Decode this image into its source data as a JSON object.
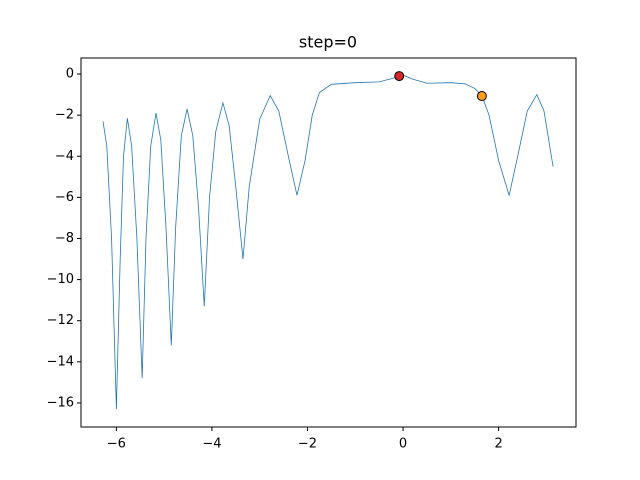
{
  "chart_data": {
    "type": "line",
    "title": "step=0",
    "xlim": [
      -6.74,
      3.62
    ],
    "ylim": [
      -17.17,
      0.78
    ],
    "xticks": [
      {
        "value": -6,
        "label": "−6"
      },
      {
        "value": -4,
        "label": "−4"
      },
      {
        "value": -2,
        "label": "−2"
      },
      0,
      2
    ],
    "yticks": [
      0,
      {
        "value": -2,
        "label": "−2"
      },
      {
        "value": -4,
        "label": "−4"
      },
      {
        "value": -6,
        "label": "−6"
      },
      {
        "value": -8,
        "label": "−8"
      },
      {
        "value": -10,
        "label": "−10"
      },
      {
        "value": -12,
        "label": "−12"
      },
      {
        "value": -14,
        "label": "−14"
      },
      {
        "value": -16,
        "label": "−16"
      }
    ],
    "series": [
      {
        "type": "line",
        "color": "#1f77b4",
        "x": [
          -6.28,
          -6.2,
          -6.1,
          -6.0,
          -5.92,
          -5.85,
          -5.77,
          -5.68,
          -5.57,
          -5.46,
          -5.38,
          -5.28,
          -5.17,
          -5.07,
          -4.96,
          -4.85,
          -4.76,
          -4.64,
          -4.52,
          -4.4,
          -4.28,
          -4.16,
          -4.05,
          -3.92,
          -3.77,
          -3.64,
          -3.5,
          -3.35,
          -3.22,
          -3.0,
          -2.78,
          -2.6,
          -2.4,
          -2.22,
          -2.05,
          -1.9,
          -1.75,
          -1.5,
          -1.0,
          -0.5,
          -0.2,
          0.0,
          0.2,
          0.5,
          1.0,
          1.3,
          1.5,
          1.65,
          1.8,
          2.0,
          2.22,
          2.4,
          2.6,
          2.8,
          2.95,
          3.14
        ],
        "values": [
          -2.3,
          -3.5,
          -8,
          -16.3,
          -9,
          -4,
          -2.15,
          -3.5,
          -8,
          -14.8,
          -8,
          -3.5,
          -1.9,
          -3.2,
          -7.5,
          -13.2,
          -7.5,
          -3,
          -1.7,
          -3,
          -6.5,
          -11.3,
          -6,
          -2.8,
          -1.4,
          -2.5,
          -5.5,
          -9.0,
          -5.5,
          -2.2,
          -1.05,
          -1.8,
          -4,
          -5.9,
          -4.2,
          -2,
          -0.9,
          -0.5,
          -0.42,
          -0.38,
          -0.2,
          -0.05,
          -0.25,
          -0.45,
          -0.42,
          -0.48,
          -0.7,
          -1.05,
          -2,
          -4.2,
          -5.9,
          -4,
          -1.8,
          -1.0,
          -1.8,
          -4.5
        ]
      },
      {
        "type": "scatter",
        "color": "#d62728",
        "x": [
          -0.08
        ],
        "values": [
          -0.1
        ]
      },
      {
        "type": "scatter",
        "color": "#ff9f1c",
        "x": [
          1.65
        ],
        "values": [
          -1.07
        ]
      }
    ]
  }
}
